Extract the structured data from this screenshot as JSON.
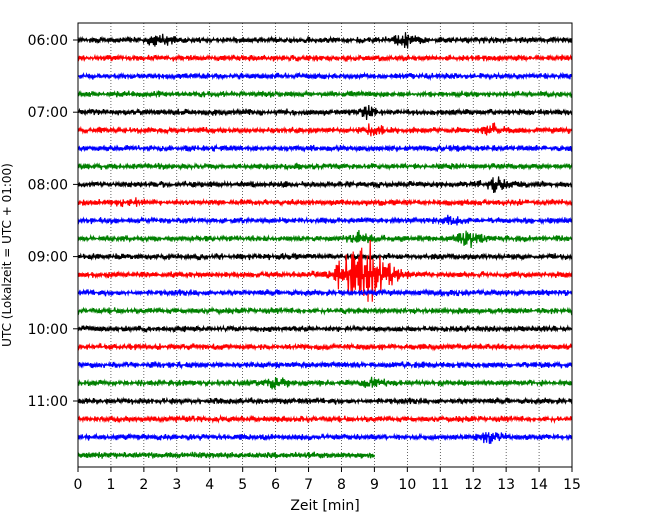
{
  "chart_data": {
    "type": "line",
    "title": "",
    "xlabel": "Zeit  [min]",
    "ylabel": "UTC (Lokalzeit = UTC + 01:00)",
    "xlim": [
      0,
      15
    ],
    "x_ticks": [
      "0",
      "1",
      "2",
      "3",
      "4",
      "5",
      "6",
      "7",
      "8",
      "9",
      "10",
      "11",
      "12",
      "13",
      "14",
      "15"
    ],
    "y_ticks": [
      "06:00",
      "07:00",
      "08:00",
      "09:00",
      "10:00",
      "11:00"
    ],
    "row_interval_min": 15,
    "rows_start": "06:00",
    "colors": [
      "#000000",
      "#ff0000",
      "#0000ff",
      "#008000"
    ],
    "grid": "vertical dotted",
    "rows": [
      {
        "start": "06:00",
        "color": "#000000",
        "end_min": 15,
        "events": [
          {
            "t": 2.5,
            "amp": 6
          },
          {
            "t": 10.0,
            "amp": 8
          }
        ]
      },
      {
        "start": "06:15",
        "color": "#ff0000",
        "end_min": 15,
        "events": []
      },
      {
        "start": "06:30",
        "color": "#0000ff",
        "end_min": 15,
        "events": []
      },
      {
        "start": "06:45",
        "color": "#008000",
        "end_min": 15,
        "events": []
      },
      {
        "start": "07:00",
        "color": "#000000",
        "end_min": 15,
        "events": [
          {
            "t": 8.8,
            "amp": 5
          }
        ]
      },
      {
        "start": "07:15",
        "color": "#ff0000",
        "end_min": 15,
        "events": [
          {
            "t": 9.0,
            "amp": 6
          },
          {
            "t": 12.6,
            "amp": 5
          }
        ]
      },
      {
        "start": "07:30",
        "color": "#0000ff",
        "end_min": 15,
        "events": []
      },
      {
        "start": "07:45",
        "color": "#008000",
        "end_min": 15,
        "events": []
      },
      {
        "start": "08:00",
        "color": "#000000",
        "end_min": 15,
        "events": [
          {
            "t": 12.7,
            "amp": 7
          }
        ]
      },
      {
        "start": "08:15",
        "color": "#ff0000",
        "end_min": 15,
        "events": [
          {
            "t": 1.5,
            "amp": 5
          }
        ]
      },
      {
        "start": "08:30",
        "color": "#0000ff",
        "end_min": 15,
        "events": [
          {
            "t": 11.4,
            "amp": 6
          }
        ]
      },
      {
        "start": "08:45",
        "color": "#008000",
        "end_min": 15,
        "events": [
          {
            "t": 8.5,
            "amp": 6
          },
          {
            "t": 11.9,
            "amp": 9
          }
        ]
      },
      {
        "start": "09:00",
        "color": "#000000",
        "end_min": 15,
        "events": []
      },
      {
        "start": "09:15",
        "color": "#ff0000",
        "end_min": 15,
        "events": [
          {
            "t": 8.7,
            "amp": 38
          }
        ]
      },
      {
        "start": "09:30",
        "color": "#0000ff",
        "end_min": 15,
        "events": []
      },
      {
        "start": "09:45",
        "color": "#008000",
        "end_min": 15,
        "events": []
      },
      {
        "start": "10:00",
        "color": "#000000",
        "end_min": 15,
        "events": []
      },
      {
        "start": "10:15",
        "color": "#ff0000",
        "end_min": 15,
        "events": []
      },
      {
        "start": "10:30",
        "color": "#0000ff",
        "end_min": 15,
        "events": []
      },
      {
        "start": "10:45",
        "color": "#008000",
        "end_min": 15,
        "events": [
          {
            "t": 6.0,
            "amp": 6
          },
          {
            "t": 9.0,
            "amp": 5
          }
        ]
      },
      {
        "start": "11:00",
        "color": "#000000",
        "end_min": 15,
        "events": []
      },
      {
        "start": "11:15",
        "color": "#ff0000",
        "end_min": 15,
        "events": []
      },
      {
        "start": "11:30",
        "color": "#0000ff",
        "end_min": 15,
        "events": [
          {
            "t": 12.5,
            "amp": 5
          }
        ]
      },
      {
        "start": "11:45",
        "color": "#008000",
        "end_min": 9.0,
        "events": []
      }
    ]
  }
}
